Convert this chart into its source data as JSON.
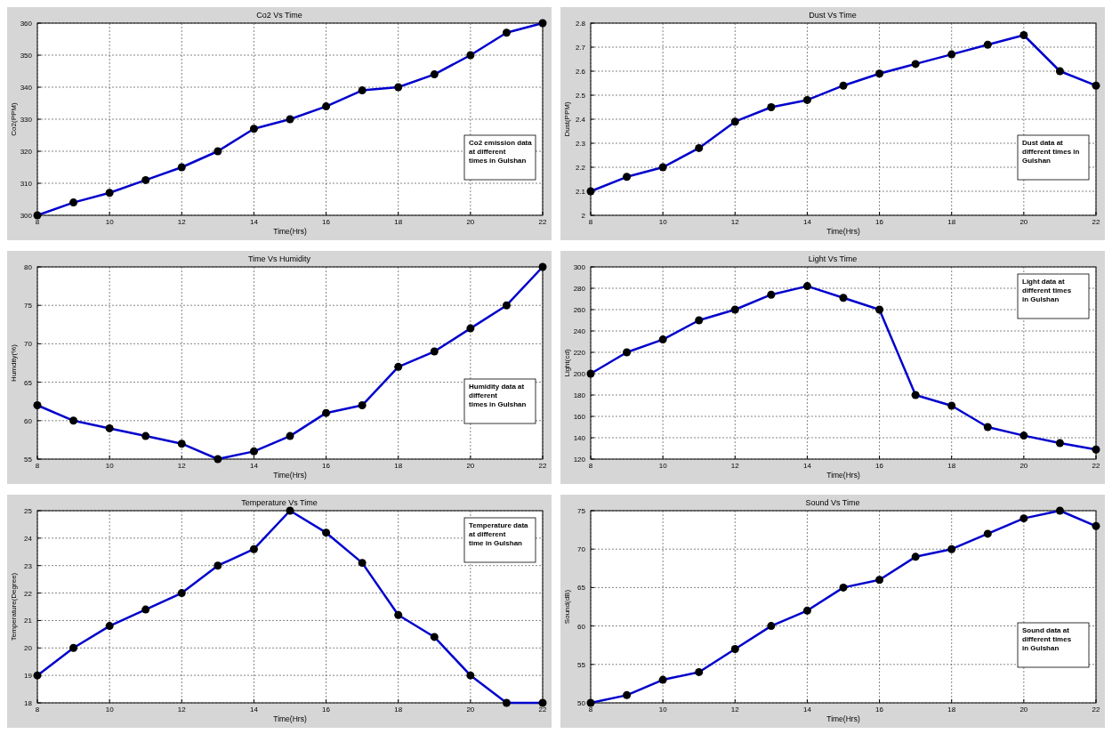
{
  "chart_data": [
    {
      "type": "line",
      "title": "Co2 Vs Time",
      "xlabel": "Time(Hrs)",
      "ylabel": "Co2(PPM)",
      "x": [
        8,
        9,
        10,
        11,
        12,
        13,
        14,
        15,
        16,
        17,
        18,
        19,
        20,
        21,
        22
      ],
      "xlim": [
        8,
        22
      ],
      "xticks": [
        8,
        10,
        12,
        14,
        16,
        18,
        20,
        22
      ],
      "ylim": [
        300,
        360
      ],
      "yticks": [
        300,
        310,
        320,
        330,
        340,
        350,
        360
      ],
      "grid": true,
      "marker": "circle",
      "line_style": "solid",
      "annotations": [
        "Co2 emission data\nat different\ntimes in Gulshan"
      ],
      "series": [
        {
          "color": "#0000cc",
          "values": [
            300,
            304,
            307,
            311,
            315,
            320,
            327,
            330,
            334,
            339,
            340,
            344,
            350,
            357,
            360
          ]
        }
      ]
    },
    {
      "type": "line",
      "title": "Dust Vs Time",
      "xlabel": "Time(Hrs)",
      "ylabel": "Dust(PPM)",
      "x": [
        8,
        9,
        10,
        11,
        12,
        13,
        14,
        15,
        16,
        17,
        18,
        19,
        20,
        21,
        22
      ],
      "xlim": [
        8,
        22
      ],
      "xticks": [
        8,
        10,
        12,
        14,
        16,
        18,
        20,
        22
      ],
      "ylim": [
        2,
        2.8
      ],
      "yticks": [
        2,
        2.1,
        2.2,
        2.3,
        2.4,
        2.5,
        2.6,
        2.7,
        2.8
      ],
      "grid": true,
      "marker": "circle",
      "line_style": "solid",
      "annotations": [
        "Dust data at\ndifferent times in\nGulshan"
      ],
      "series": [
        {
          "color": "#0000cc",
          "values": [
            2.1,
            2.16,
            2.2,
            2.28,
            2.39,
            2.45,
            2.48,
            2.54,
            2.59,
            2.63,
            2.67,
            2.71,
            2.75,
            2.6,
            2.54
          ]
        }
      ]
    },
    {
      "type": "line",
      "title": "Time Vs Humidity",
      "xlabel": "Time(Hrs)",
      "ylabel": "Humdity(%)",
      "x": [
        8,
        9,
        10,
        11,
        12,
        13,
        14,
        15,
        16,
        17,
        18,
        19,
        20,
        21,
        22
      ],
      "xlim": [
        8,
        22
      ],
      "xticks": [
        8,
        10,
        12,
        14,
        16,
        18,
        20,
        22
      ],
      "ylim": [
        55,
        80
      ],
      "yticks": [
        55,
        60,
        65,
        70,
        75,
        80
      ],
      "grid": true,
      "marker": "circle",
      "line_style": "solid",
      "annotations": [
        "Humidity data at\ndifferent\ntimes in Gulshan"
      ],
      "series": [
        {
          "color": "#0000cc",
          "values": [
            62,
            60,
            59,
            58,
            57,
            55,
            56,
            58,
            61,
            62,
            67,
            69,
            72,
            75,
            80
          ]
        }
      ]
    },
    {
      "type": "line",
      "title": "Light Vs Time",
      "xlabel": "Time(Hrs)",
      "ylabel": "Light(cd)",
      "x": [
        8,
        9,
        10,
        11,
        12,
        13,
        14,
        15,
        16,
        17,
        18,
        19,
        20,
        21,
        22
      ],
      "xlim": [
        8,
        22
      ],
      "xticks": [
        8,
        10,
        12,
        14,
        16,
        18,
        20,
        22
      ],
      "ylim": [
        120,
        300
      ],
      "yticks": [
        120,
        140,
        160,
        180,
        200,
        220,
        240,
        260,
        280,
        300
      ],
      "grid": true,
      "marker": "circle",
      "line_style": "solid",
      "annotations": [
        "Light data at\ndifferent times\nin Gulshan"
      ],
      "series": [
        {
          "color": "#0000cc",
          "values": [
            200,
            220,
            232,
            250,
            260,
            274,
            282,
            271,
            260,
            180,
            170,
            150,
            142,
            135,
            129
          ]
        }
      ]
    },
    {
      "type": "line",
      "title": "Temperature Vs Time",
      "xlabel": "Time(Hrs)",
      "ylabel": "Temperature(Degree)",
      "x": [
        8,
        9,
        10,
        11,
        12,
        13,
        14,
        15,
        16,
        17,
        18,
        19,
        20,
        21,
        22
      ],
      "xlim": [
        8,
        22
      ],
      "xticks": [
        8,
        10,
        12,
        14,
        16,
        18,
        20,
        22
      ],
      "ylim": [
        18,
        25
      ],
      "yticks": [
        18,
        19,
        20,
        21,
        22,
        23,
        24,
        25
      ],
      "grid": true,
      "marker": "circle",
      "line_style": "solid",
      "annotations": [
        "Temperature data\nat different\ntime in Gulshan"
      ],
      "series": [
        {
          "color": "#0000cc",
          "values": [
            19,
            20,
            20.8,
            21.4,
            22,
            23,
            23.6,
            25,
            24.2,
            23.1,
            21.2,
            20.4,
            19,
            18,
            18
          ]
        }
      ]
    },
    {
      "type": "line",
      "title": "Sound Vs Time",
      "xlabel": "Time(Hrs)",
      "ylabel": "Sound(dB)",
      "x": [
        8,
        9,
        10,
        11,
        12,
        13,
        14,
        15,
        16,
        17,
        18,
        19,
        20,
        21,
        22
      ],
      "xlim": [
        8,
        22
      ],
      "xticks": [
        8,
        10,
        12,
        14,
        16,
        18,
        20,
        22
      ],
      "ylim": [
        50,
        75
      ],
      "yticks": [
        50,
        55,
        60,
        65,
        70,
        75
      ],
      "grid": true,
      "marker": "circle",
      "line_style": "solid",
      "annotations": [
        "Sound data at\ndifferent times\nin Gulshan"
      ],
      "series": [
        {
          "color": "#0000cc",
          "values": [
            50,
            51,
            53,
            54,
            57,
            60,
            62,
            65,
            66,
            69,
            70,
            72,
            74,
            75,
            73
          ]
        }
      ]
    }
  ]
}
